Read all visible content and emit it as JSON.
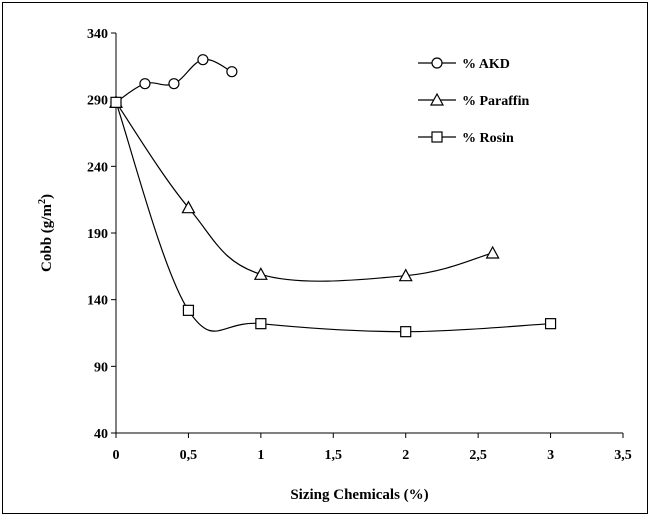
{
  "chart_data": {
    "type": "line",
    "xlabel": "Sizing Chemicals (%)",
    "ylabel": "Cobb (g/m",
    "ylabel_sup": "2",
    "ylabel_end": ")",
    "xlim": [
      0,
      3.5
    ],
    "ylim": [
      40,
      340
    ],
    "x_ticks": [
      "0",
      "0,5",
      "1",
      "1,5",
      "2",
      "2,5",
      "3",
      "3,5"
    ],
    "y_ticks": [
      "40",
      "90",
      "140",
      "190",
      "240",
      "290",
      "340"
    ],
    "legend_position": "top-right",
    "grid": false,
    "series": [
      {
        "name": "% AKD",
        "marker": "circle",
        "x": [
          0,
          0.2,
          0.4,
          0.6,
          0.8
        ],
        "y": [
          288,
          302,
          302,
          320,
          311
        ]
      },
      {
        "name": "% Paraffin",
        "marker": "triangle",
        "x": [
          0,
          0.5,
          1,
          2,
          2.6
        ],
        "y": [
          288,
          209,
          159,
          158,
          175
        ]
      },
      {
        "name": "% Rosin",
        "marker": "square",
        "x": [
          0,
          0.5,
          1,
          2,
          3
        ],
        "y": [
          288,
          132,
          122,
          116,
          122
        ]
      }
    ]
  }
}
